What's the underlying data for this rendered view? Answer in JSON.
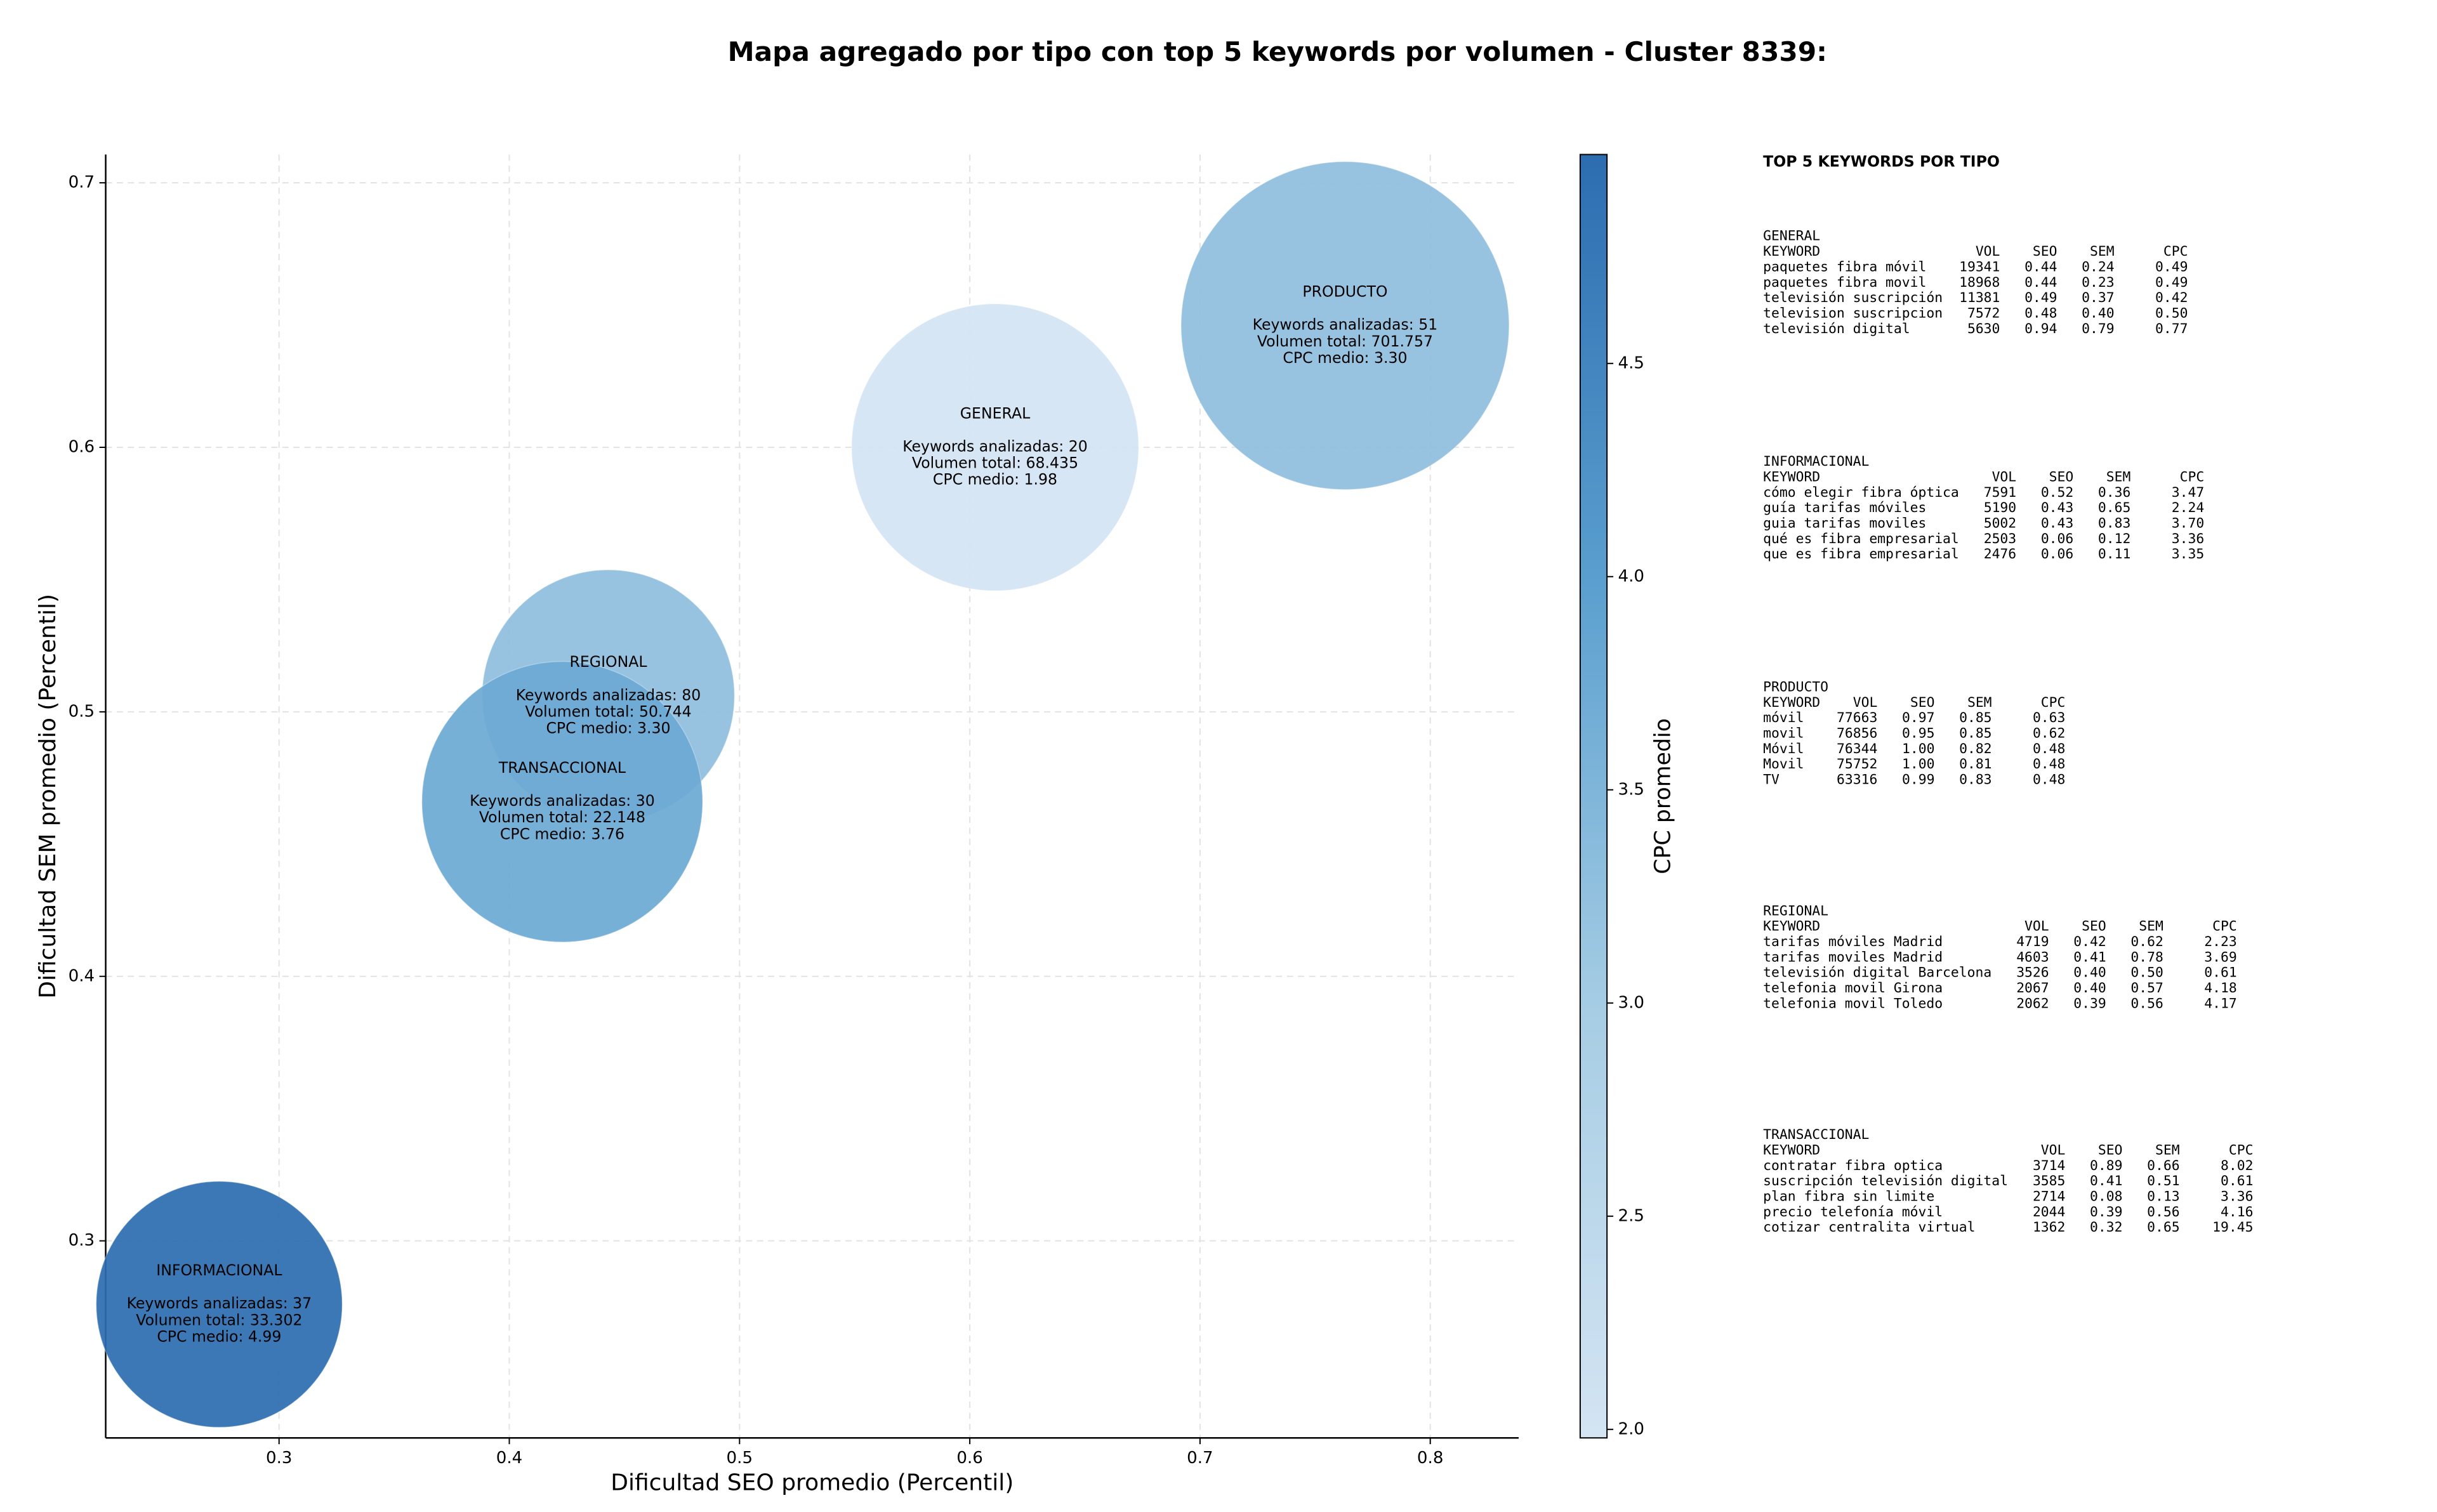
{
  "chart_data": {
    "type": "bubble",
    "title": "Mapa agregado por tipo con top 5 keywords por volumen - Cluster 8339:",
    "xlabel": "Dificultad SEO promedio (Percentil)",
    "ylabel": "Dificultad SEM promedio (Percentil)",
    "categories": [
      "GENERAL",
      "INFORMACIONAL",
      "PRODUCTO",
      "REGIONAL",
      "TRANSACCIONAL"
    ],
    "x": [
      0.611,
      0.274,
      0.763,
      0.443,
      0.423
    ],
    "y": [
      0.6,
      0.276,
      0.646,
      0.506,
      0.466
    ],
    "sizes": [
      8281,
      6084,
      10816,
      6400,
      7921
    ],
    "cpc": [
      1.98,
      4.99,
      3.3,
      3.3,
      3.76
    ],
    "annotations": [
      [
        "Keywords analizadas: 20",
        "Volumen total: 68.435",
        "CPC medio: 1.98"
      ],
      [
        "Keywords analizadas: 37",
        "Volumen total: 33.302",
        "CPC medio: 4.99"
      ],
      [
        "Keywords analizadas: 51",
        "Volumen total: 701.757",
        "CPC medio: 3.30"
      ],
      [
        "Keywords analizadas: 80",
        "Volumen total: 50.744",
        "CPC medio: 3.30"
      ],
      [
        "Keywords analizadas: 30",
        "Volumen total: 22.148",
        "CPC medio: 3.76"
      ]
    ],
    "xlim": [
      0.2247,
      0.8384
    ],
    "ylim": [
      0.2255,
      0.7107
    ],
    "xticks": [
      0.3,
      0.4,
      0.5,
      0.6,
      0.7,
      0.8
    ],
    "yticks": [
      0.3,
      0.4,
      0.5,
      0.6,
      0.7
    ],
    "grid": true,
    "colorbar": {
      "label": "CPC promedio",
      "lim": [
        1.98,
        4.99
      ],
      "ticks": [
        {
          "value": 2.0,
          "label": "2.0"
        },
        {
          "value": 2.5,
          "label": "2.5"
        },
        {
          "value": 3.0,
          "label": "3.0"
        },
        {
          "value": 3.5,
          "label": "3.5"
        },
        {
          "value": 4.0,
          "label": "4.0"
        },
        {
          "value": 4.5,
          "label": "4.5"
        }
      ],
      "colormap": [
        "#d4e4f3",
        "#a6cde4",
        "#5a9fcf",
        "#2c6db0"
      ]
    }
  },
  "panel": {
    "title": "TOP 5 KEYWORDS POR TIPO",
    "columns": [
      "KEYWORD",
      "VOL",
      "SEO",
      "SEM",
      "CPC"
    ],
    "sections": [
      {
        "name": "GENERAL",
        "rows": [
          [
            "paquetes fibra móvil",
            "19341",
            "0.44",
            "0.24",
            "0.49"
          ],
          [
            "paquetes fibra movil",
            "18968",
            "0.44",
            "0.23",
            "0.49"
          ],
          [
            "televisión suscripción",
            "11381",
            "0.49",
            "0.37",
            "0.42"
          ],
          [
            "television suscripcion",
            "7572",
            "0.48",
            "0.40",
            "0.50"
          ],
          [
            "televisión digital",
            "5630",
            "0.94",
            "0.79",
            "0.77"
          ]
        ]
      },
      {
        "name": "INFORMACIONAL",
        "rows": [
          [
            "cómo elegir fibra óptica",
            "7591",
            "0.52",
            "0.36",
            "3.47"
          ],
          [
            "guía tarifas móviles",
            "5190",
            "0.43",
            "0.65",
            "2.24"
          ],
          [
            "guia tarifas moviles",
            "5002",
            "0.43",
            "0.83",
            "3.70"
          ],
          [
            "qué es fibra empresarial",
            "2503",
            "0.06",
            "0.12",
            "3.36"
          ],
          [
            "que es fibra empresarial",
            "2476",
            "0.06",
            "0.11",
            "3.35"
          ]
        ]
      },
      {
        "name": "PRODUCTO",
        "rows": [
          [
            "móvil",
            "77663",
            "0.97",
            "0.85",
            "0.63"
          ],
          [
            "movil",
            "76856",
            "0.95",
            "0.85",
            "0.62"
          ],
          [
            "Móvil",
            "76344",
            "1.00",
            "0.82",
            "0.48"
          ],
          [
            "Movil",
            "75752",
            "1.00",
            "0.81",
            "0.48"
          ],
          [
            "TV",
            "63316",
            "0.99",
            "0.83",
            "0.48"
          ]
        ]
      },
      {
        "name": "REGIONAL",
        "rows": [
          [
            "tarifas móviles Madrid",
            "4719",
            "0.42",
            "0.62",
            "2.23"
          ],
          [
            "tarifas moviles Madrid",
            "4603",
            "0.41",
            "0.78",
            "3.69"
          ],
          [
            "televisión digital Barcelona",
            "3526",
            "0.40",
            "0.50",
            "0.61"
          ],
          [
            "telefonia movil Girona",
            "2067",
            "0.40",
            "0.57",
            "4.18"
          ],
          [
            "telefonia movil Toledo",
            "2062",
            "0.39",
            "0.56",
            "4.17"
          ]
        ]
      },
      {
        "name": "TRANSACCIONAL",
        "rows": [
          [
            "contratar fibra optica",
            "3714",
            "0.89",
            "0.66",
            "8.02"
          ],
          [
            "suscripción televisión digital",
            "3585",
            "0.41",
            "0.51",
            "0.61"
          ],
          [
            "plan fibra sin limite",
            "2714",
            "0.08",
            "0.13",
            "3.36"
          ],
          [
            "precio telefonía móvil",
            "2044",
            "0.39",
            "0.56",
            "4.16"
          ],
          [
            "cotizar centralita virtual",
            "1362",
            "0.32",
            "0.65",
            "19.45"
          ]
        ]
      }
    ]
  }
}
